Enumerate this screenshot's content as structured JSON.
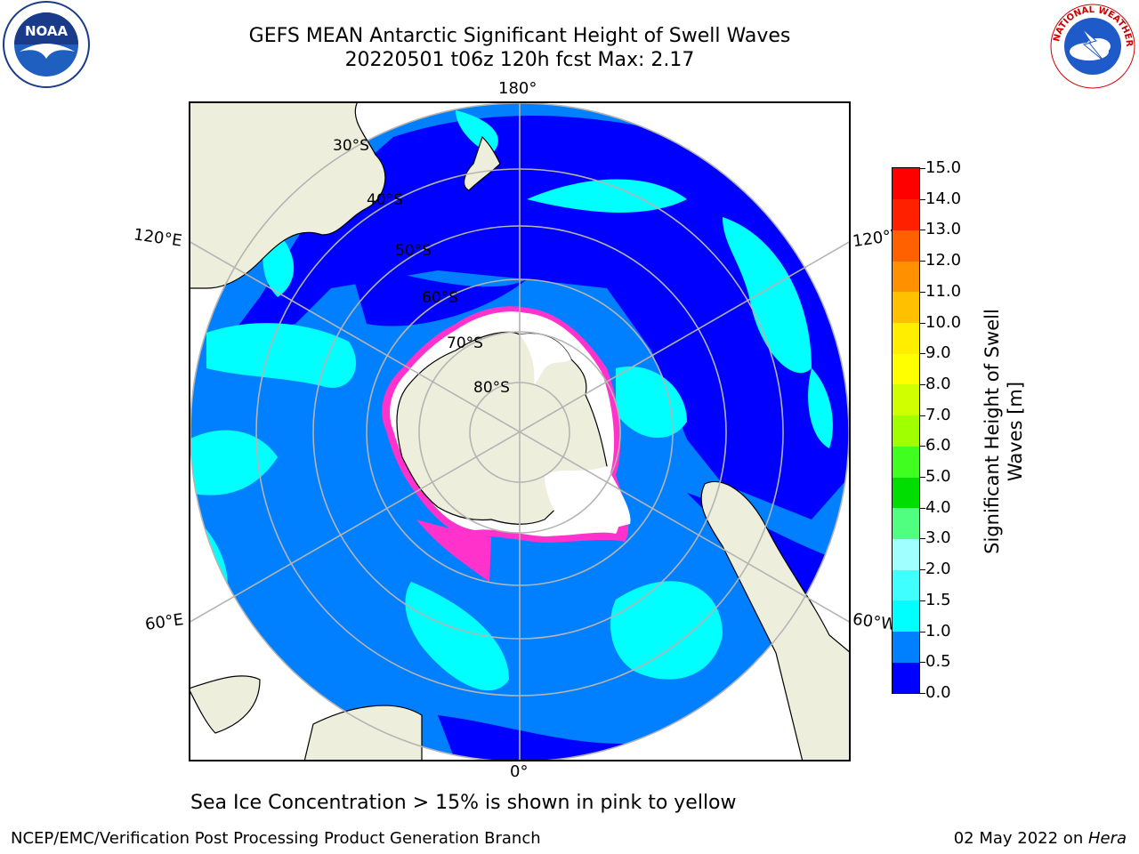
{
  "header": {
    "title_line1": "GEFS MEAN Antarctic Significant Height of Swell Waves",
    "title_line2": "20220501 t06z 120h fcst   Max: 2.17"
  },
  "logos": {
    "noaa": {
      "icon": "noaa-logo",
      "text": "NOAA",
      "ring_text": "NATIONAL OCEANIC AND ATMOSPHERIC ADMINISTRATION · U.S. DEPARTMENT OF COMMERCE"
    },
    "nws": {
      "icon": "nws-logo",
      "ring_text": "NATIONAL WEATHER SERVICE"
    }
  },
  "map": {
    "projection": "south-polar-stereographic",
    "longitude_labels": {
      "top": "180°",
      "bottom": "0°",
      "upper_left": "120°E",
      "upper_right": "120°W",
      "lower_left": "60°E",
      "lower_right": "60°W"
    },
    "latitude_labels": [
      "30°S",
      "40°S",
      "50°S",
      "60°S",
      "70°S",
      "80°S"
    ],
    "colors": {
      "land": "#eeeedc",
      "ocean_low": "#0000ff",
      "ocean_mid": "#0080ff",
      "ocean_high": "#00ffff",
      "ice": "#ffffff",
      "ice_edge": "#ff33cc",
      "grid": "#b4b4b4"
    }
  },
  "colorbar": {
    "label_line1": "Significant Height of Swell",
    "label_line2": "Waves [m]",
    "ticks": [
      "15.0",
      "14.0",
      "13.0",
      "12.0",
      "11.0",
      "10.0",
      "9.0",
      "8.0",
      "7.0",
      "6.0",
      "5.0",
      "4.0",
      "3.0",
      "2.0",
      "1.5",
      "1.0",
      "0.5",
      "0.0"
    ],
    "levels": [
      0.0,
      0.5,
      1.0,
      1.5,
      2.0,
      3.0,
      4.0,
      5.0,
      6.0,
      7.0,
      8.0,
      9.0,
      10.0,
      11.0,
      12.0,
      13.0,
      14.0,
      15.0
    ],
    "colors": [
      "#0000ff",
      "#0080ff",
      "#00ffff",
      "#40ffff",
      "#a0ffff",
      "#50ff80",
      "#00dd00",
      "#40ff20",
      "#a0ff00",
      "#d0ff00",
      "#ffff00",
      "#ffee00",
      "#ffc000",
      "#ff9000",
      "#ff6000",
      "#ff2000",
      "#ff0000"
    ]
  },
  "footer": {
    "note": "Sea Ice Concentration > 15% is shown in pink to yellow",
    "credit": "NCEP/EMC/Verification Post Processing Product Generation Branch",
    "date": "02 May 2022 on ",
    "machine": "Hera"
  }
}
